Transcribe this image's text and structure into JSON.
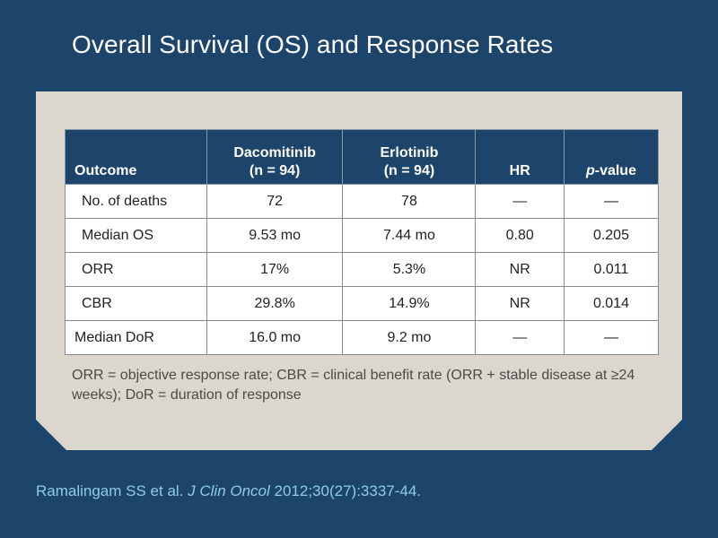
{
  "slide": {
    "title": "Overall Survival (OS) and Response Rates"
  },
  "table": {
    "headers": [
      {
        "line1": "",
        "line2": "Outcome"
      },
      {
        "line1": "Dacomitinib",
        "line2": "(n = 94)"
      },
      {
        "line1": "Erlotinib",
        "line2": "(n = 94)"
      },
      {
        "line1": "",
        "line2": "HR"
      },
      {
        "line1": "",
        "line2_italic": "p",
        "line2": "-value"
      }
    ],
    "rows": [
      [
        "No. of deaths",
        "72",
        "78",
        "—",
        "—"
      ],
      [
        "Median OS",
        "9.53 mo",
        "7.44 mo",
        "0.80",
        "0.205"
      ],
      [
        "ORR",
        "17%",
        "5.3%",
        "NR",
        "0.011"
      ],
      [
        "CBR",
        "29.8%",
        "14.9%",
        "NR",
        "0.014"
      ],
      [
        "Median DoR",
        "16.0 mo",
        "9.2 mo",
        "—",
        "—"
      ]
    ]
  },
  "footnote": "ORR = objective response rate; CBR = clinical benefit rate (ORR + stable disease at ≥24 weeks); DoR = duration of response",
  "citation": {
    "authors": "Ramalingam SS et al.",
    "journal": "J Clin Oncol",
    "details": "2012;30(27):3337-44."
  },
  "colors": {
    "background": "#1d456c",
    "panel": "#dcd7cc",
    "header_fill": "#1d456c",
    "citation_text": "#8fcbe4"
  }
}
